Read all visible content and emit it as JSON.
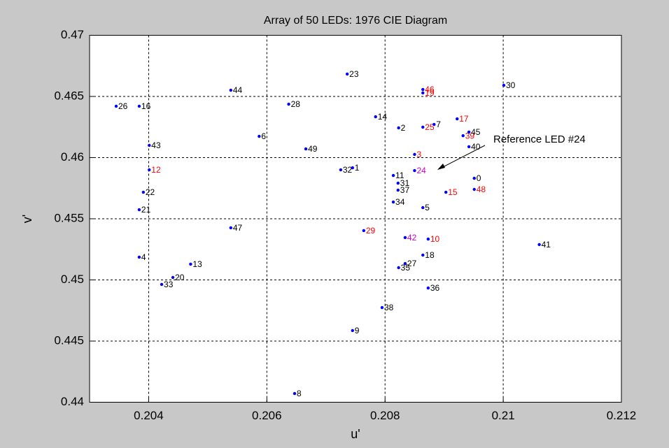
{
  "chart_data": {
    "type": "scatter",
    "title": "Array of 50 LEDs: 1976 CIE Diagram",
    "x_label": "u'",
    "y_label": "v'",
    "annotation": "Reference LED #24",
    "xlim": [
      0.203,
      0.212
    ],
    "ylim": [
      0.44,
      0.47
    ],
    "xticks": [
      0.204,
      0.206,
      0.208,
      0.21,
      0.212
    ],
    "yticks": [
      0.44,
      0.445,
      0.45,
      0.455,
      0.46,
      0.465,
      0.47
    ],
    "grid": true,
    "color": "#0000ff",
    "labels": [
      "26",
      "16",
      "44",
      "28",
      "6",
      "43",
      "49",
      "12",
      "22",
      "21",
      "47",
      "4",
      "13",
      "20",
      "33",
      "23",
      "32",
      "1",
      "29",
      "9",
      "8",
      "38",
      "14",
      "2",
      "11",
      "31",
      "37",
      "34",
      "5",
      "42",
      "10",
      "18",
      "27",
      "35",
      "36",
      "46",
      "19",
      "25",
      "7",
      "17",
      "39",
      "45",
      "40",
      "3",
      "24",
      "0",
      "48",
      "15",
      "30",
      "41"
    ],
    "label_colors": [
      "#000000",
      "#000000",
      "#000000",
      "#000000",
      "#000000",
      "#000000",
      "#000000",
      "#ff0000",
      "#000000",
      "#000000",
      "#000000",
      "#000000",
      "#000000",
      "#000000",
      "#000000",
      "#000000",
      "#000000",
      "#000000",
      "#ff0000",
      "#000000",
      "#000000",
      "#000000",
      "#000000",
      "#000000",
      "#000000",
      "#000000",
      "#000000",
      "#000000",
      "#000000",
      "#cc00cc",
      "#ff0000",
      "#000000",
      "#000000",
      "#000000",
      "#000000",
      "#ff0000",
      "#ff0000",
      "#ff0000",
      "#000000",
      "#ff0000",
      "#ff0000",
      "#000000",
      "#000000",
      "#ff0000",
      "#cc00cc",
      "#000000",
      "#ff0000",
      "#ff0000",
      "#000000",
      "#000000"
    ],
    "x": [
      0.20345,
      0.20384,
      0.20539,
      0.20637,
      0.20587,
      0.20401,
      0.20666,
      0.20401,
      0.20391,
      0.20384,
      0.20539,
      0.20384,
      0.20471,
      0.20441,
      0.20422,
      0.20736,
      0.20725,
      0.20745,
      0.20764,
      0.20745,
      0.20647,
      0.20795,
      0.20784,
      0.20823,
      0.20814,
      0.20822,
      0.20822,
      0.20814,
      0.20864,
      0.20834,
      0.20873,
      0.20864,
      0.20834,
      0.20823,
      0.20873,
      0.20864,
      0.20864,
      0.20864,
      0.20883,
      0.20922,
      0.20932,
      0.20942,
      0.20942,
      0.2085,
      0.2085,
      0.20951,
      0.20951,
      0.20903,
      0.21001,
      0.21061
    ],
    "y": [
      0.4642,
      0.4642,
      0.46551,
      0.46437,
      0.46174,
      0.461,
      0.46071,
      0.459,
      0.45717,
      0.45574,
      0.45426,
      0.45186,
      0.45129,
      0.4502,
      0.44963,
      0.46683,
      0.459,
      0.45917,
      0.45403,
      0.44586,
      0.44071,
      0.44774,
      0.46334,
      0.46243,
      0.45854,
      0.45791,
      0.45734,
      0.45637,
      0.45591,
      0.45346,
      0.45334,
      0.45203,
      0.45134,
      0.451,
      0.44934,
      0.46557,
      0.46529,
      0.46249,
      0.46271,
      0.46317,
      0.46179,
      0.46209,
      0.46089,
      0.46026,
      0.45894,
      0.45831,
      0.4574,
      0.45717,
      0.46591,
      0.45289
    ]
  }
}
